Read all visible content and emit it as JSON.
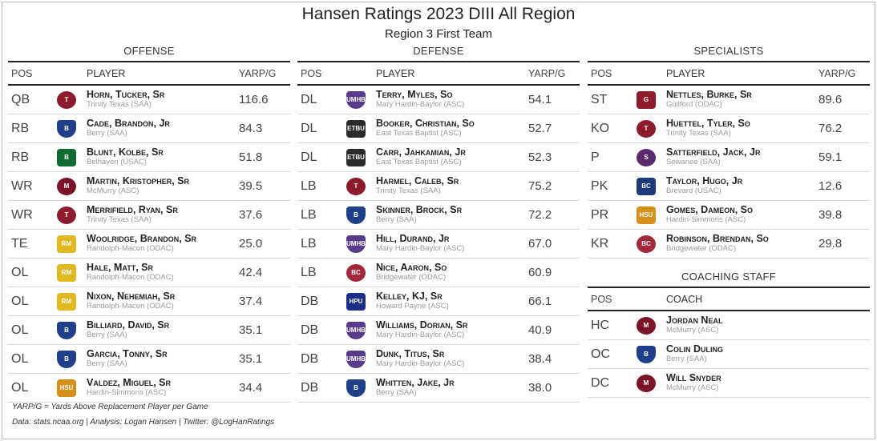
{
  "title": "Hansen Ratings 2023 DIII All Region",
  "subtitle": "Region 3 First Team",
  "headers": {
    "pos": "POS",
    "player": "PLAYER",
    "yarp": "YARP/G",
    "coach": "COACH"
  },
  "offense": {
    "title": "OFFENSE",
    "rows": [
      {
        "pos": "QB",
        "name": "Horn, Tucker, Sr",
        "team": "Trinity Texas (SAA)",
        "yarp": "116.6",
        "logo": "tiger-logo-icon",
        "color": "#8a1c2b",
        "abbr": "T"
      },
      {
        "pos": "RB",
        "name": "Cade, Brandon, Jr",
        "team": "Berry (SAA)",
        "yarp": "84.3",
        "logo": "viking-logo-icon",
        "color": "#1f3f8a",
        "abbr": "B"
      },
      {
        "pos": "RB",
        "name": "Blunt, Kolbe, Sr",
        "team": "Belhaven (USAC)",
        "yarp": "51.8",
        "logo": "b-logo-icon",
        "color": "#0f6b2f",
        "abbr": "B"
      },
      {
        "pos": "WR",
        "name": "Martin, Kristopher, Sr",
        "team": "McMurry (ASC)",
        "yarp": "39.5",
        "logo": "war-hawk-logo-icon",
        "color": "#7a1426",
        "abbr": "M"
      },
      {
        "pos": "WR",
        "name": "Merrifield, Ryan, Sr",
        "team": "Trinity Texas (SAA)",
        "yarp": "37.6",
        "logo": "tiger-logo-icon",
        "color": "#8a1c2b",
        "abbr": "T"
      },
      {
        "pos": "TE",
        "name": "Woolridge, Brandon, Sr",
        "team": "Randolph-Macon (ODAC)",
        "yarp": "25.0",
        "logo": "yellow-jacket-logo-icon",
        "color": "#e0b81f",
        "abbr": "RM"
      },
      {
        "pos": "OL",
        "name": "Hale, Matt, Sr",
        "team": "Randolph-Macon (ODAC)",
        "yarp": "42.4",
        "logo": "yellow-jacket-logo-icon",
        "color": "#e0b81f",
        "abbr": "RM"
      },
      {
        "pos": "OL",
        "name": "Nixon, Nehemiah, Sr",
        "team": "Randolph-Macon (ODAC)",
        "yarp": "37.4",
        "logo": "yellow-jacket-logo-icon",
        "color": "#e0b81f",
        "abbr": "RM"
      },
      {
        "pos": "OL",
        "name": "Billiard, David, Sr",
        "team": "Berry (SAA)",
        "yarp": "35.1",
        "logo": "viking-logo-icon",
        "color": "#1f3f8a",
        "abbr": "B"
      },
      {
        "pos": "OL",
        "name": "Garcia, Tonny, Sr",
        "team": "Berry (SAA)",
        "yarp": "35.1",
        "logo": "viking-logo-icon",
        "color": "#1f3f8a",
        "abbr": "B"
      },
      {
        "pos": "OL",
        "name": "Valdez, Miguel, Sr",
        "team": "Hardin-Simmons (ASC)",
        "yarp": "34.4",
        "logo": "hsu-logo-icon",
        "color": "#d9901a",
        "abbr": "HSU"
      }
    ]
  },
  "defense": {
    "title": "DEFENSE",
    "rows": [
      {
        "pos": "DL",
        "name": "Terry, Myles, So",
        "team": "Mary Hardin-Baylor (ASC)",
        "yarp": "54.1",
        "logo": "umhb-logo-icon",
        "color": "#5a3a8c",
        "abbr": "UMHB"
      },
      {
        "pos": "DL",
        "name": "Booker, Christian, So",
        "team": "East Texas Baptist (ASC)",
        "yarp": "52.7",
        "logo": "etbu-logo-icon",
        "color": "#2b2b2b",
        "abbr": "ETBU"
      },
      {
        "pos": "DL",
        "name": "Carr, Jahkamian, Jr",
        "team": "East Texas Baptist (ASC)",
        "yarp": "52.3",
        "logo": "etbu-logo-icon",
        "color": "#2b2b2b",
        "abbr": "ETBU"
      },
      {
        "pos": "LB",
        "name": "Harmel, Caleb, Sr",
        "team": "Trinity Texas (SAA)",
        "yarp": "75.2",
        "logo": "tiger-logo-icon",
        "color": "#8a1c2b",
        "abbr": "T"
      },
      {
        "pos": "LB",
        "name": "Skinner, Brock, Sr",
        "team": "Berry (SAA)",
        "yarp": "72.2",
        "logo": "viking-logo-icon",
        "color": "#1f3f8a",
        "abbr": "B"
      },
      {
        "pos": "LB",
        "name": "Hill, Durand, Jr",
        "team": "Mary Hardin-Baylor (ASC)",
        "yarp": "67.0",
        "logo": "umhb-logo-icon",
        "color": "#5a3a8c",
        "abbr": "UMHB"
      },
      {
        "pos": "LB",
        "name": "Nice, Aaron, So",
        "team": "Bridgewater (ODAC)",
        "yarp": "60.9",
        "logo": "eagle-logo-icon",
        "color": "#a3283a",
        "abbr": "BC"
      },
      {
        "pos": "DB",
        "name": "Kelley, KJ, Sr",
        "team": "Howard Payne (ASC)",
        "yarp": "66.1",
        "logo": "hpu-logo-icon",
        "color": "#1b2f8a",
        "abbr": "HPU"
      },
      {
        "pos": "DB",
        "name": "Williams, Dorian, Sr",
        "team": "Mary Hardin-Baylor (ASC)",
        "yarp": "40.9",
        "logo": "umhb-logo-icon",
        "color": "#5a3a8c",
        "abbr": "UMHB"
      },
      {
        "pos": "DB",
        "name": "Dunk, Titus, Sr",
        "team": "Mary Hardin-Baylor (ASC)",
        "yarp": "38.4",
        "logo": "umhb-logo-icon",
        "color": "#5a3a8c",
        "abbr": "UMHB"
      },
      {
        "pos": "DB",
        "name": "Whitten, Jake, Jr",
        "team": "Berry (SAA)",
        "yarp": "38.0",
        "logo": "viking-logo-icon",
        "color": "#1f3f8a",
        "abbr": "B"
      }
    ]
  },
  "specialists": {
    "title": "SPECIALISTS",
    "rows": [
      {
        "pos": "ST",
        "name": "Nettles, Burke, Sr",
        "team": "Guilford (ODAC)",
        "yarp": "89.6",
        "logo": "guilford-logo-icon",
        "color": "#8e1b2c",
        "abbr": "G"
      },
      {
        "pos": "KO",
        "name": "Huettel, Tyler, So",
        "team": "Trinity Texas (SAA)",
        "yarp": "76.2",
        "logo": "tiger-logo-icon",
        "color": "#8a1c2b",
        "abbr": "T"
      },
      {
        "pos": "P",
        "name": "Satterfield, Jack, Jr",
        "team": "Sewanee (SAA)",
        "yarp": "59.1",
        "logo": "sewanee-tiger-logo-icon",
        "color": "#5b2a6e",
        "abbr": "S"
      },
      {
        "pos": "PK",
        "name": "Taylor, Hugo, Jr",
        "team": "Brevard (USAC)",
        "yarp": "12.6",
        "logo": "bc-logo-icon",
        "color": "#1f3a7a",
        "abbr": "BC"
      },
      {
        "pos": "PR",
        "name": "Gomes, Dameon, So",
        "team": "Hardin-Simmons (ASC)",
        "yarp": "39.8",
        "logo": "hsu-logo-icon",
        "color": "#d9901a",
        "abbr": "HSU"
      },
      {
        "pos": "KR",
        "name": "Robinson, Brendan, So",
        "team": "Bridgewater (ODAC)",
        "yarp": "29.8",
        "logo": "eagle-logo-icon",
        "color": "#a3283a",
        "abbr": "BC"
      }
    ]
  },
  "coaching": {
    "title": "COACHING STAFF",
    "rows": [
      {
        "pos": "HC",
        "name": "Jordan Neal",
        "team": "McMurry (ASC)",
        "logo": "war-hawk-logo-icon",
        "color": "#7a1426",
        "abbr": "M"
      },
      {
        "pos": "OC",
        "name": "Colin Duling",
        "team": "Berry (SAA)",
        "logo": "viking-logo-icon",
        "color": "#1f3f8a",
        "abbr": "B"
      },
      {
        "pos": "DC",
        "name": "Will Snyder",
        "team": "McMurry (ASC)",
        "logo": "war-hawk-logo-icon",
        "color": "#7a1426",
        "abbr": "M"
      }
    ]
  },
  "footnote1": "YARP/G = Yards Above Replacement Player per Game",
  "footnote2": "Data: stats.ncaa.org | Analysis: Logan Hansen | Twitter: @LogHanRatings"
}
